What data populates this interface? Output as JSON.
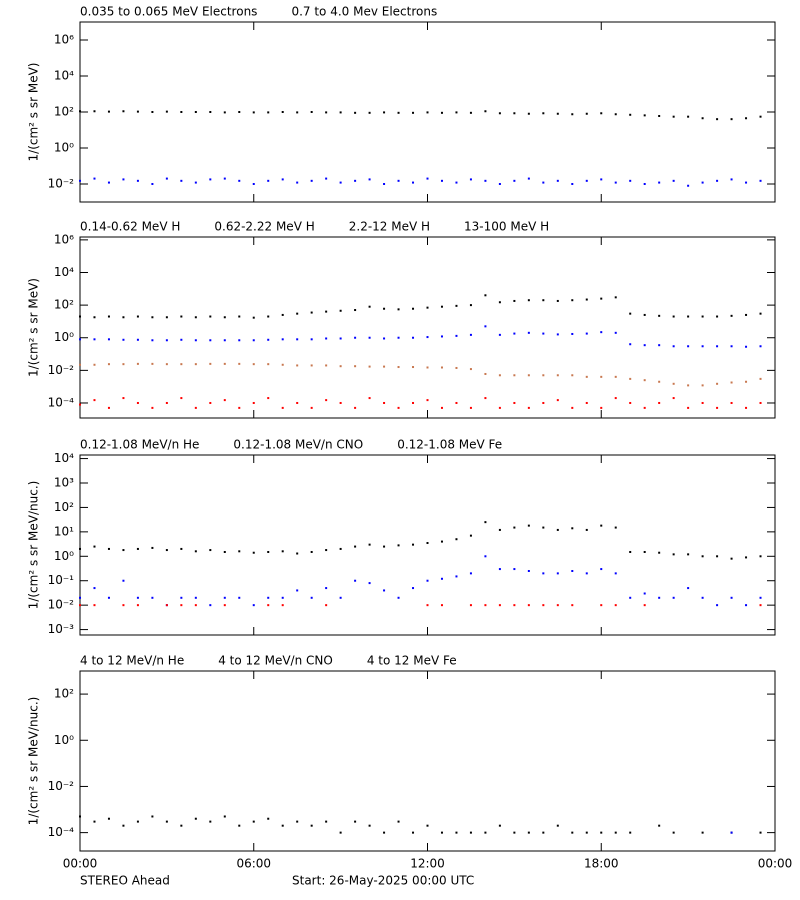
{
  "chart_data": [
    {
      "type": "scatter",
      "log_y": true,
      "ylabel": "1/(cm² s sr MeV)",
      "xlim": [
        0,
        24
      ],
      "xticks": [
        0,
        6,
        12,
        18,
        24
      ],
      "ylim": [
        0.001,
        10000000
      ],
      "yticks": [
        {
          "value": 1000000,
          "label": "10⁶"
        },
        {
          "value": 10000,
          "label": "10⁴"
        },
        {
          "value": 100,
          "label": "10²"
        },
        {
          "value": 1,
          "label": "10⁰"
        },
        {
          "value": 0.01,
          "label": "10⁻²"
        }
      ],
      "x": [
        0,
        0.5,
        1,
        1.5,
        2,
        2.5,
        3,
        3.5,
        4,
        4.5,
        5,
        5.5,
        6,
        6.5,
        7,
        7.5,
        8,
        8.5,
        9,
        9.5,
        10,
        10.5,
        11,
        11.5,
        12,
        12.5,
        13,
        13.5,
        14,
        14.5,
        15,
        15.5,
        16,
        16.5,
        17,
        17.5,
        18,
        18.5,
        19,
        19.5,
        20,
        20.5,
        21,
        21.5,
        22,
        22.5,
        23,
        23.5
      ],
      "series": [
        {
          "name": "0.035 to 0.065 MeV Electrons",
          "color": "#000000",
          "values": [
            110,
            110,
            105,
            110,
            105,
            100,
            105,
            100,
            100,
            100,
            95,
            100,
            95,
            95,
            100,
            95,
            100,
            95,
            95,
            90,
            90,
            95,
            90,
            90,
            95,
            90,
            95,
            90,
            110,
            85,
            85,
            80,
            85,
            80,
            75,
            80,
            85,
            75,
            70,
            65,
            60,
            55,
            55,
            45,
            40,
            40,
            45,
            55
          ]
        },
        {
          "name": "0.7 to 4.0 Mev Electrons",
          "color": "#0000ff",
          "values": [
            0.015,
            0.02,
            0.012,
            0.018,
            0.015,
            0.01,
            0.02,
            0.015,
            0.012,
            0.018,
            0.02,
            0.015,
            0.01,
            0.015,
            0.018,
            0.012,
            0.015,
            0.02,
            0.012,
            0.015,
            0.018,
            0.01,
            0.015,
            0.012,
            0.02,
            0.015,
            0.012,
            0.018,
            0.015,
            0.01,
            0.015,
            0.02,
            0.012,
            0.015,
            0.01,
            0.015,
            0.018,
            0.012,
            0.015,
            0.01,
            0.012,
            0.015,
            0.008,
            0.012,
            0.015,
            0.018,
            0.012,
            0.015
          ]
        }
      ]
    },
    {
      "type": "scatter",
      "log_y": true,
      "ylabel": "1/(cm² s sr MeV)",
      "xlim": [
        0,
        24
      ],
      "xticks": [
        0,
        6,
        12,
        18,
        24
      ],
      "ylim": [
        1.2e-05,
        1500000
      ],
      "yticks": [
        {
          "value": 1000000,
          "label": "10⁶"
        },
        {
          "value": 10000,
          "label": "10⁴"
        },
        {
          "value": 100,
          "label": "10²"
        },
        {
          "value": 1,
          "label": "10⁰"
        },
        {
          "value": 0.01,
          "label": "10⁻²"
        },
        {
          "value": 0.0001,
          "label": "10⁻⁴"
        }
      ],
      "x": [
        0,
        0.5,
        1,
        1.5,
        2,
        2.5,
        3,
        3.5,
        4,
        4.5,
        5,
        5.5,
        6,
        6.5,
        7,
        7.5,
        8,
        8.5,
        9,
        9.5,
        10,
        10.5,
        11,
        11.5,
        12,
        12.5,
        13,
        13.5,
        14,
        14.5,
        15,
        15.5,
        16,
        16.5,
        17,
        17.5,
        18,
        18.5,
        19,
        19.5,
        20,
        20.5,
        21,
        21.5,
        22,
        22.5,
        23,
        23.5
      ],
      "series": [
        {
          "name": "0.14-0.62 MeV H",
          "color": "#000000",
          "values": [
            20,
            18,
            20,
            18,
            20,
            18,
            18,
            20,
            18,
            20,
            18,
            20,
            17,
            20,
            25,
            30,
            35,
            40,
            45,
            50,
            80,
            60,
            55,
            60,
            70,
            80,
            90,
            100,
            400,
            150,
            180,
            200,
            200,
            180,
            200,
            220,
            250,
            300,
            30,
            25,
            22,
            20,
            20,
            20,
            20,
            22,
            25,
            30
          ]
        },
        {
          "name": "0.62-2.22 MeV H",
          "color": "#0000ff",
          "values": [
            0.8,
            0.8,
            0.8,
            0.75,
            0.75,
            0.7,
            0.7,
            0.75,
            0.7,
            0.7,
            0.7,
            0.7,
            0.7,
            0.75,
            0.8,
            0.8,
            0.8,
            0.9,
            0.9,
            1.0,
            1.0,
            0.9,
            1.0,
            1.0,
            1.1,
            1.2,
            1.3,
            1.5,
            5,
            1.5,
            1.8,
            2,
            1.8,
            1.6,
            1.7,
            1.8,
            2.2,
            2.0,
            0.4,
            0.35,
            0.35,
            0.3,
            0.3,
            0.3,
            0.3,
            0.3,
            0.28,
            0.3
          ]
        },
        {
          "name": "2.2-12 MeV H",
          "color": "#c87850",
          "values": [
            0.022,
            0.022,
            0.024,
            0.024,
            0.025,
            0.025,
            0.024,
            0.024,
            0.024,
            0.025,
            0.025,
            0.025,
            0.024,
            0.024,
            0.022,
            0.02,
            0.02,
            0.02,
            0.018,
            0.018,
            0.017,
            0.017,
            0.016,
            0.016,
            0.015,
            0.015,
            0.014,
            0.012,
            0.006,
            0.005,
            0.005,
            0.005,
            0.005,
            0.005,
            0.005,
            0.004,
            0.004,
            0.004,
            0.003,
            0.0025,
            0.002,
            0.0015,
            0.0012,
            0.0012,
            0.0015,
            0.0018,
            0.002,
            0.003
          ]
        },
        {
          "name": "13-100 MeV H",
          "color": "#ff0000",
          "values": [
            8e-05,
            0.00015,
            5e-05,
            0.0002,
            0.0001,
            5e-05,
            0.0001,
            0.0002,
            5e-05,
            0.0001,
            0.00015,
            5e-05,
            0.0001,
            0.0002,
            5e-05,
            0.0001,
            5e-05,
            0.00015,
            0.0001,
            5e-05,
            0.0002,
            0.0001,
            5e-05,
            0.0001,
            0.00015,
            5e-05,
            0.0001,
            5e-05,
            0.0002,
            5e-05,
            0.0001,
            5e-05,
            0.0001,
            0.00015,
            5e-05,
            0.0001,
            5e-05,
            0.0002,
            0.0001,
            5e-05,
            0.0001,
            0.0002,
            5e-05,
            0.0001,
            5e-05,
            0.0001,
            5e-05,
            0.0001
          ]
        }
      ]
    },
    {
      "type": "scatter",
      "log_y": true,
      "ylabel": "1/(cm² s sr MeV/nuc.)",
      "xlim": [
        0,
        24
      ],
      "xticks": [
        0,
        6,
        12,
        18,
        24
      ],
      "ylim": [
        0.0006,
        14000
      ],
      "yticks": [
        {
          "value": 10000,
          "label": "10⁴"
        },
        {
          "value": 1000,
          "label": "10³"
        },
        {
          "value": 100,
          "label": "10²"
        },
        {
          "value": 10,
          "label": "10¹"
        },
        {
          "value": 1,
          "label": "10⁰"
        },
        {
          "value": 0.1,
          "label": "10⁻¹"
        },
        {
          "value": 0.01,
          "label": "10⁻²"
        },
        {
          "value": 0.001,
          "label": "10⁻³"
        }
      ],
      "x": [
        0,
        0.5,
        1,
        1.5,
        2,
        2.5,
        3,
        3.5,
        4,
        4.5,
        5,
        5.5,
        6,
        6.5,
        7,
        7.5,
        8,
        8.5,
        9,
        9.5,
        10,
        10.5,
        11,
        11.5,
        12,
        12.5,
        13,
        13.5,
        14,
        14.5,
        15,
        15.5,
        16,
        16.5,
        17,
        17.5,
        18,
        18.5,
        19,
        19.5,
        20,
        20.5,
        21,
        21.5,
        22,
        22.5,
        23,
        23.5
      ],
      "series": [
        {
          "name": "0.12-1.08 MeV/n He",
          "color": "#000000",
          "values": [
            2,
            2.5,
            2,
            1.8,
            2,
            2.2,
            1.8,
            2,
            1.6,
            1.8,
            1.5,
            1.6,
            1.4,
            1.5,
            1.6,
            1.3,
            1.5,
            1.8,
            2,
            2.5,
            3,
            2.5,
            2.8,
            3,
            3.5,
            4,
            5,
            7,
            25,
            12,
            15,
            18,
            15,
            12,
            14,
            12,
            18,
            15,
            1.5,
            1.5,
            1.4,
            1.2,
            1.2,
            1,
            1,
            0.8,
            0.9,
            1
          ]
        },
        {
          "name": "0.12-1.08 MeV/n CNO",
          "color": "#0000ff",
          "values": [
            0.02,
            0.05,
            0.02,
            0.1,
            0.02,
            0.02,
            0.01,
            0.02,
            0.02,
            0.01,
            0.02,
            0.02,
            0.01,
            0.02,
            0.02,
            0.04,
            0.02,
            0.05,
            0.02,
            0.1,
            0.08,
            0.04,
            0.02,
            0.05,
            0.1,
            0.12,
            0.15,
            0.2,
            1.0,
            0.3,
            0.3,
            0.25,
            0.2,
            0.2,
            0.25,
            0.2,
            0.3,
            0.2,
            0.02,
            0.03,
            0.02,
            0.02,
            0.05,
            0.02,
            0.01,
            0.02,
            0.01,
            0.02
          ]
        },
        {
          "name": "0.12-1.08 MeV Fe",
          "color": "#ff0000",
          "values": [
            0.01,
            0.01,
            null,
            0.01,
            0.01,
            null,
            0.01,
            0.01,
            0.01,
            null,
            0.01,
            null,
            null,
            0.01,
            0.01,
            null,
            null,
            0.01,
            null,
            null,
            null,
            null,
            null,
            null,
            0.01,
            0.01,
            null,
            0.01,
            0.01,
            0.01,
            0.01,
            0.01,
            0.01,
            0.01,
            0.01,
            null,
            0.01,
            0.01,
            null,
            0.01,
            null,
            null,
            null,
            null,
            null,
            null,
            null,
            0.01
          ]
        }
      ]
    },
    {
      "type": "scatter",
      "log_y": true,
      "ylabel": "1/(cm² s sr MeV/nuc.)",
      "xlim": [
        0,
        24
      ],
      "xticks": [
        {
          "value": 0,
          "label": "00:00"
        },
        {
          "value": 6,
          "label": "06:00"
        },
        {
          "value": 12,
          "label": "12:00"
        },
        {
          "value": 18,
          "label": "18:00"
        },
        {
          "value": 24,
          "label": "00:00"
        }
      ],
      "ylim": [
        1.6e-05,
        1000
      ],
      "yticks": [
        {
          "value": 100,
          "label": "10²"
        },
        {
          "value": 1,
          "label": "10⁰"
        },
        {
          "value": 0.01,
          "label": "10⁻²"
        },
        {
          "value": 0.0001,
          "label": "10⁻⁴"
        }
      ],
      "x": [
        0,
        0.5,
        1,
        1.5,
        2,
        2.5,
        3,
        3.5,
        4,
        4.5,
        5,
        5.5,
        6,
        6.5,
        7,
        7.5,
        8,
        8.5,
        9,
        9.5,
        10,
        10.5,
        11,
        11.5,
        12,
        12.5,
        13,
        13.5,
        14,
        14.5,
        15,
        15.5,
        16,
        16.5,
        17,
        17.5,
        18,
        18.5,
        19,
        19.5,
        20,
        20.5,
        21,
        21.5,
        22,
        22.5,
        23,
        23.5
      ],
      "series": [
        {
          "name": "4 to 12 MeV/n He",
          "color": "#000000",
          "values": [
            0.0005,
            0.0003,
            0.0004,
            0.0002,
            0.0003,
            0.0005,
            0.0003,
            0.0002,
            0.0004,
            0.0003,
            0.0005,
            0.0002,
            0.0003,
            0.0004,
            0.0002,
            0.0003,
            0.0002,
            0.0003,
            0.0001,
            0.0003,
            0.0002,
            0.0001,
            0.0003,
            0.0001,
            0.0002,
            0.0001,
            0.0001,
            0.0001,
            0.0001,
            0.0002,
            0.0001,
            0.0001,
            0.0001,
            0.0002,
            0.0001,
            0.0001,
            0.0001,
            0.0001,
            0.0001,
            null,
            0.0002,
            0.0001,
            null,
            0.0001,
            null,
            0.0001,
            null,
            0.0001
          ]
        },
        {
          "name": "4 to 12 MeV/n CNO",
          "color": "#0000ff",
          "values": [
            null,
            null,
            null,
            null,
            null,
            null,
            null,
            null,
            null,
            null,
            null,
            null,
            null,
            null,
            null,
            null,
            null,
            null,
            null,
            null,
            null,
            null,
            null,
            null,
            null,
            null,
            null,
            null,
            null,
            null,
            null,
            null,
            null,
            null,
            null,
            null,
            null,
            null,
            null,
            null,
            null,
            null,
            null,
            null,
            null,
            0.0001,
            null,
            null
          ]
        },
        {
          "name": "4 to 12 MeV Fe",
          "color": "#ff0000",
          "values": [
            null,
            null,
            null,
            null,
            null,
            null,
            null,
            null,
            null,
            null,
            null,
            null,
            null,
            null,
            null,
            null,
            null,
            null,
            null,
            null,
            null,
            null,
            null,
            null,
            null,
            null,
            null,
            null,
            null,
            null,
            null,
            null,
            null,
            null,
            null,
            null,
            null,
            null,
            null,
            null,
            null,
            null,
            null,
            null,
            null,
            null,
            null,
            null
          ]
        }
      ]
    }
  ],
  "footer": {
    "left": "STEREO Ahead",
    "center": "Start: 26-May-2025 00:00 UTC"
  }
}
